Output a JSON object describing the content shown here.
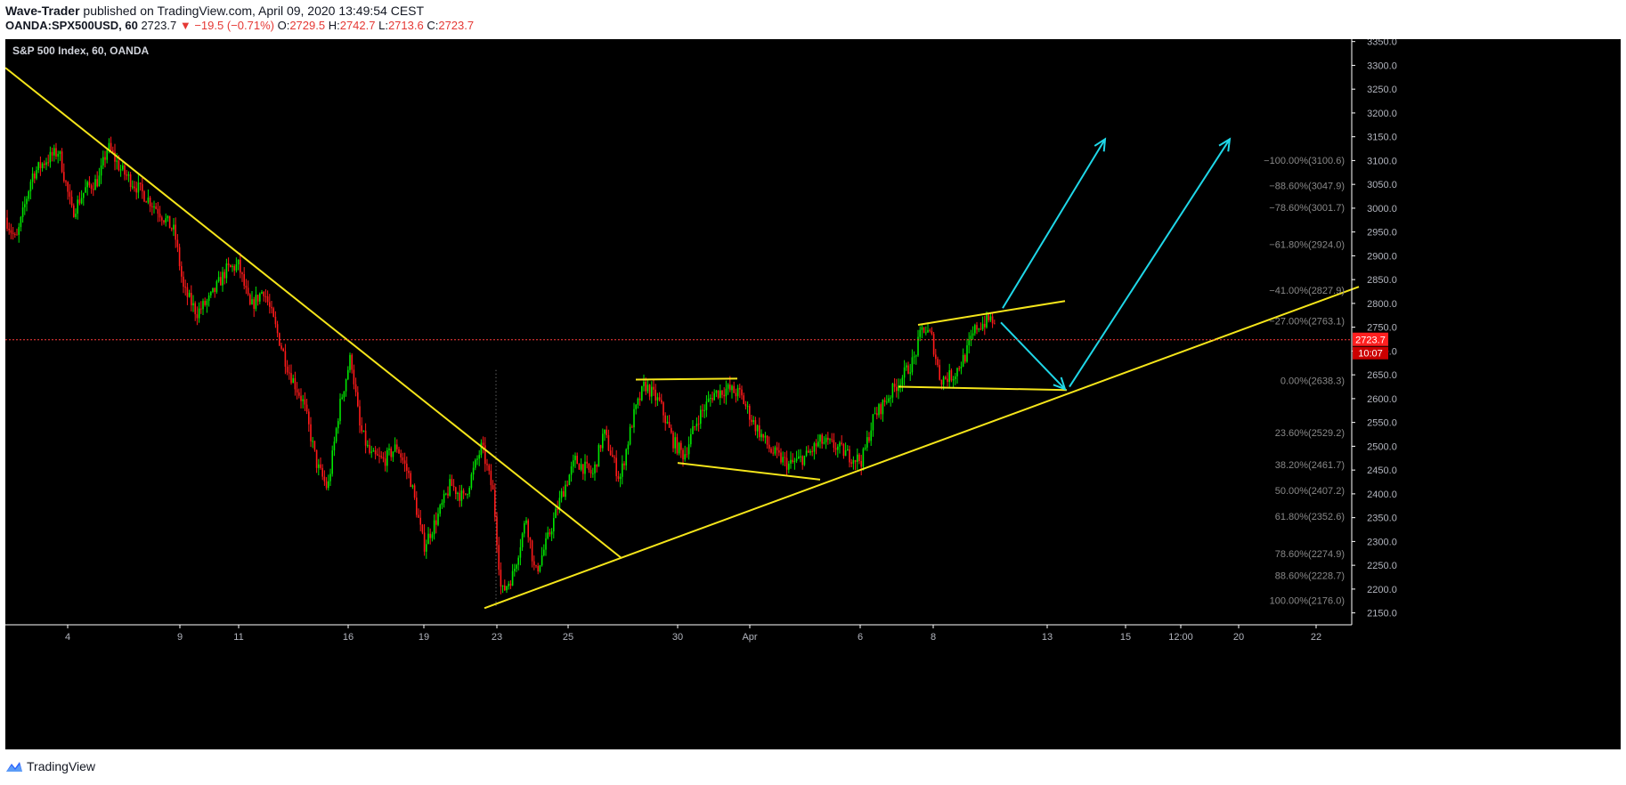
{
  "header": {
    "author": "Wave-Trader",
    "published": "published on TradingView.com, April 09, 2020 13:49:54 CEST",
    "symbol": "OANDA:SPX500USD, 60",
    "last": "2723.7",
    "change_arrow": "▼",
    "change": "−19.5 (−0.71%)",
    "o_label": "O:",
    "o_value": "2729.5",
    "h_label": "H:",
    "h_value": "2742.7",
    "l_label": "L:",
    "l_value": "2713.6",
    "c_label": "C:",
    "c_value": "2723.7"
  },
  "chart_data": {
    "type": "candlestick",
    "title": "S&P 500 Index, 60, OANDA",
    "ylim": [
      2125,
      3355
    ],
    "y_ticks": [
      2150,
      2200,
      2250,
      2300,
      2350,
      2400,
      2450,
      2500,
      2550,
      2600,
      2650,
      2700,
      2750,
      2800,
      2850,
      2900,
      2950,
      3000,
      3050,
      3100,
      3150,
      3200,
      3250,
      3300,
      3350
    ],
    "x_ticks": [
      "4",
      "9",
      "11",
      "16",
      "19",
      "23",
      "25",
      "30",
      "Apr",
      "6",
      "8",
      "13",
      "15",
      "12:00",
      "20",
      "22"
    ],
    "price_path": [
      [
        0,
        2980
      ],
      [
        12,
        2930
      ],
      [
        30,
        3070
      ],
      [
        45,
        3100
      ],
      [
        60,
        3120
      ],
      [
        75,
        2990
      ],
      [
        90,
        3040
      ],
      [
        105,
        3060
      ],
      [
        115,
        3130
      ],
      [
        130,
        3080
      ],
      [
        150,
        3040
      ],
      [
        170,
        3000
      ],
      [
        190,
        2950
      ],
      [
        200,
        2830
      ],
      [
        215,
        2780
      ],
      [
        230,
        2810
      ],
      [
        248,
        2870
      ],
      [
        262,
        2880
      ],
      [
        275,
        2790
      ],
      [
        290,
        2830
      ],
      [
        305,
        2740
      ],
      [
        318,
        2660
      ],
      [
        335,
        2590
      ],
      [
        350,
        2460
      ],
      [
        362,
        2410
      ],
      [
        375,
        2580
      ],
      [
        388,
        2690
      ],
      [
        398,
        2540
      ],
      [
        410,
        2480
      ],
      [
        425,
        2470
      ],
      [
        440,
        2500
      ],
      [
        455,
        2430
      ],
      [
        470,
        2290
      ],
      [
        485,
        2350
      ],
      [
        500,
        2420
      ],
      [
        515,
        2390
      ],
      [
        535,
        2500
      ],
      [
        548,
        2400
      ],
      [
        557,
        2190
      ],
      [
        570,
        2230
      ],
      [
        585,
        2350
      ],
      [
        595,
        2230
      ],
      [
        610,
        2310
      ],
      [
        625,
        2400
      ],
      [
        640,
        2470
      ],
      [
        660,
        2440
      ],
      [
        672,
        2530
      ],
      [
        690,
        2430
      ],
      [
        705,
        2560
      ],
      [
        718,
        2630
      ],
      [
        735,
        2590
      ],
      [
        750,
        2510
      ],
      [
        762,
        2480
      ],
      [
        778,
        2560
      ],
      [
        795,
        2610
      ],
      [
        810,
        2620
      ],
      [
        825,
        2610
      ],
      [
        840,
        2550
      ],
      [
        860,
        2490
      ],
      [
        880,
        2460
      ],
      [
        900,
        2480
      ],
      [
        915,
        2510
      ],
      [
        932,
        2500
      ],
      [
        948,
        2480
      ],
      [
        962,
        2470
      ],
      [
        975,
        2560
      ],
      [
        990,
        2600
      ],
      [
        1005,
        2640
      ],
      [
        1020,
        2680
      ],
      [
        1030,
        2750
      ],
      [
        1040,
        2730
      ],
      [
        1050,
        2640
      ],
      [
        1065,
        2650
      ],
      [
        1078,
        2690
      ],
      [
        1090,
        2750
      ],
      [
        1100,
        2760
      ],
      [
        1108,
        2770
      ],
      [
        1113,
        2730
      ]
    ],
    "current_price": {
      "label": "2723.7",
      "countdown": "10:07",
      "value": 2723.7
    },
    "fib_levels": [
      {
        "label": "−100.00%(3100.6)",
        "value": 3100.6
      },
      {
        "label": "−88.60%(3047.9)",
        "value": 3047.9
      },
      {
        "label": "−78.60%(3001.7)",
        "value": 3001.7
      },
      {
        "label": "−61.80%(2924.0)",
        "value": 2924.0
      },
      {
        "label": "−41.00%(2827.9)",
        "value": 2827.9
      },
      {
        "label": "−27.00%(2763.1)",
        "value": 2763.1
      },
      {
        "label": "0.00%(2638.3)",
        "value": 2638.3
      },
      {
        "label": "23.60%(2529.2)",
        "value": 2529.2
      },
      {
        "label": "38.20%(2461.7)",
        "value": 2461.7
      },
      {
        "label": "50.00%(2407.2)",
        "value": 2407.2
      },
      {
        "label": "61.80%(2352.6)",
        "value": 2352.6
      },
      {
        "label": "78.60%(2274.9)",
        "value": 2274.9
      },
      {
        "label": "88.60%(2228.7)",
        "value": 2228.7
      },
      {
        "label": "100.00%(2176.0)",
        "value": 2176.0
      }
    ],
    "trendlines": [
      {
        "from": [
          0,
          3295
        ],
        "to": [
          692,
          2265
        ]
      },
      {
        "from": [
          538,
          2160
        ],
        "to": [
          1520,
          2835
        ]
      },
      {
        "from": [
          708,
          2640
        ],
        "to": [
          822,
          2642
        ]
      },
      {
        "from": [
          755,
          2465
        ],
        "to": [
          915,
          2430
        ]
      },
      {
        "from": [
          1003,
          2625
        ],
        "to": [
          1192,
          2618
        ]
      },
      {
        "from": [
          1025,
          2755
        ],
        "to": [
          1190,
          2805
        ]
      }
    ],
    "projection_arrows": [
      {
        "from": [
          1120,
          2790
        ],
        "to": [
          1235,
          3145
        ]
      },
      {
        "from": [
          1118,
          2760
        ],
        "to": [
          1190,
          2620
        ]
      },
      {
        "from": [
          1195,
          2625
        ],
        "to": [
          1375,
          3145
        ]
      }
    ],
    "colors": {
      "background": "#000000",
      "up": "#00e600",
      "down": "#ff1a1a",
      "trendline": "#f5e51a",
      "arrow": "#1fd7e8",
      "axis_text": "#b2b5be",
      "fib_text": "#888888",
      "price_line": "#ff3b3b"
    }
  },
  "footer": {
    "brand": "TradingView"
  }
}
